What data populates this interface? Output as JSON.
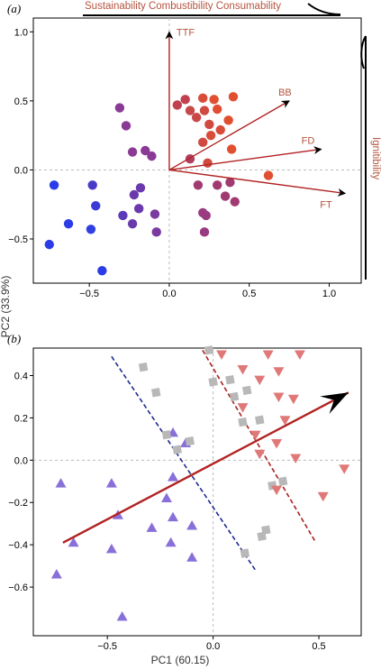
{
  "panel_labels": {
    "a": "(a)",
    "b": "(b)"
  },
  "side_labels": {
    "top": "Sustainability Combustibility Consumability",
    "right": "Ignitibility"
  },
  "colors": {
    "vector": "#b22222",
    "blue": "#2b3be6",
    "purple": "#7a3aa0",
    "red": "#e05030",
    "triangle": "#8870d8",
    "square": "#b8b8b8",
    "invtriangle": "#e07878",
    "navy_dash": "#1f2a8c",
    "red_dash": "#a82020"
  },
  "chart_data": [
    {
      "type": "scatter",
      "panel": "(a)",
      "xlim": [
        -0.85,
        1.2
      ],
      "ylim": [
        -0.82,
        1.1
      ],
      "xticks": [
        -0.5,
        0.0,
        0.5,
        1.0
      ],
      "yticks": [
        -0.5,
        0.0,
        0.5,
        1.0
      ],
      "xtick_labels": [
        "−0.5",
        "0.0",
        "0.5",
        "1.0"
      ],
      "ytick_labels": [
        "−0.5",
        "0.0",
        "0.5",
        "1.0"
      ],
      "grid": false,
      "vectors": [
        {
          "label": "TTF",
          "x": 0.0,
          "y": 1.0
        },
        {
          "label": "BB",
          "x": 0.75,
          "y": 0.5
        },
        {
          "label": "FD",
          "x": 0.95,
          "y": 0.15
        },
        {
          "label": "FT",
          "x": 1.1,
          "y": -0.17
        }
      ],
      "points": [
        {
          "x": -0.72,
          "y": -0.11,
          "c": "#2b3be6"
        },
        {
          "x": -0.63,
          "y": -0.39,
          "c": "#2b3be6"
        },
        {
          "x": -0.75,
          "y": -0.54,
          "c": "#2b3be6"
        },
        {
          "x": -0.46,
          "y": -0.26,
          "c": "#3b3ad8"
        },
        {
          "x": -0.49,
          "y": -0.43,
          "c": "#3040e0"
        },
        {
          "x": -0.42,
          "y": -0.73,
          "c": "#2b3be6"
        },
        {
          "x": -0.48,
          "y": -0.11,
          "c": "#4a3ac8"
        },
        {
          "x": -0.29,
          "y": -0.33,
          "c": "#5a3ab8"
        },
        {
          "x": -0.23,
          "y": -0.39,
          "c": "#6a3aac"
        },
        {
          "x": -0.18,
          "y": -0.13,
          "c": "#6a3aac"
        },
        {
          "x": -0.22,
          "y": -0.18,
          "c": "#6a3aac"
        },
        {
          "x": -0.19,
          "y": -0.28,
          "c": "#6a3aac"
        },
        {
          "x": -0.09,
          "y": -0.32,
          "c": "#7a3aa0"
        },
        {
          "x": -0.08,
          "y": -0.45,
          "c": "#7a3aa0"
        },
        {
          "x": -0.15,
          "y": 0.14,
          "c": "#8a3a94"
        },
        {
          "x": -0.11,
          "y": 0.1,
          "c": "#8a3a94"
        },
        {
          "x": -0.31,
          "y": 0.45,
          "c": "#8a3a94"
        },
        {
          "x": -0.27,
          "y": 0.32,
          "c": "#8a3a94"
        },
        {
          "x": -0.23,
          "y": 0.13,
          "c": "#8a3a94"
        },
        {
          "x": 0.22,
          "y": -0.45,
          "c": "#9a3a80"
        },
        {
          "x": 0.21,
          "y": -0.31,
          "c": "#9a3a80"
        },
        {
          "x": 0.23,
          "y": -0.33,
          "c": "#9a3a80"
        },
        {
          "x": 0.3,
          "y": -0.11,
          "c": "#a03a70"
        },
        {
          "x": 0.35,
          "y": -0.19,
          "c": "#a03a70"
        },
        {
          "x": 0.38,
          "y": -0.09,
          "c": "#a03a70"
        },
        {
          "x": 0.41,
          "y": -0.23,
          "c": "#a03a70"
        },
        {
          "x": 0.18,
          "y": -0.11,
          "c": "#a03a70"
        },
        {
          "x": 0.13,
          "y": 0.08,
          "c": "#b04060"
        },
        {
          "x": 0.05,
          "y": 0.47,
          "c": "#c04050"
        },
        {
          "x": 0.1,
          "y": 0.51,
          "c": "#c04050"
        },
        {
          "x": 0.17,
          "y": 0.38,
          "c": "#c84848"
        },
        {
          "x": 0.13,
          "y": 0.43,
          "c": "#c84848"
        },
        {
          "x": 0.22,
          "y": 0.43,
          "c": "#d04a40"
        },
        {
          "x": 0.25,
          "y": 0.33,
          "c": "#d04a40"
        },
        {
          "x": 0.21,
          "y": 0.2,
          "c": "#d04a40"
        },
        {
          "x": 0.24,
          "y": 0.05,
          "c": "#d04a40"
        },
        {
          "x": 0.21,
          "y": 0.52,
          "c": "#d84c38"
        },
        {
          "x": 0.26,
          "y": 0.25,
          "c": "#d84c38"
        },
        {
          "x": 0.32,
          "y": 0.29,
          "c": "#d84c38"
        },
        {
          "x": 0.3,
          "y": 0.44,
          "c": "#e04e34"
        },
        {
          "x": 0.28,
          "y": 0.51,
          "c": "#e05030"
        },
        {
          "x": 0.37,
          "y": 0.36,
          "c": "#e05030"
        },
        {
          "x": 0.39,
          "y": 0.15,
          "c": "#e05030"
        },
        {
          "x": 0.4,
          "y": 0.53,
          "c": "#e05030"
        },
        {
          "x": 0.62,
          "y": -0.04,
          "c": "#e05030"
        }
      ]
    },
    {
      "type": "scatter",
      "panel": "(b)",
      "xlabel": "PC1 (60.15)",
      "ylabel": "PC2 (33.9%)",
      "xlim": [
        -0.85,
        0.7
      ],
      "ylim": [
        -0.83,
        0.53
      ],
      "xticks": [
        -0.5,
        0.0,
        0.5
      ],
      "yticks": [
        -0.6,
        -0.4,
        -0.2,
        0.0,
        0.2,
        0.4
      ],
      "xtick_labels": [
        "−0.5",
        "0.0",
        "0.5"
      ],
      "ytick_labels": [
        "−0.6",
        "−0.4",
        "−0.2",
        "0.0",
        "0.2",
        "0.4"
      ],
      "grid": false,
      "vector": {
        "x0": -0.71,
        "y0": -0.39,
        "x1": 0.64,
        "y1": 0.32
      },
      "dashed_lines": [
        {
          "x0": -0.48,
          "y0": 0.49,
          "x1": 0.2,
          "y1": -0.52,
          "c": "#1f2a8c"
        },
        {
          "x0": -0.05,
          "y0": 0.52,
          "x1": 0.48,
          "y1": -0.38,
          "c": "#a82020"
        }
      ],
      "series": [
        {
          "marker": "triangle",
          "points": [
            {
              "x": -0.72,
              "y": -0.11
            },
            {
              "x": -0.48,
              "y": -0.11
            },
            {
              "x": -0.66,
              "y": -0.39
            },
            {
              "x": -0.74,
              "y": -0.54
            },
            {
              "x": -0.45,
              "y": -0.26
            },
            {
              "x": -0.48,
              "y": -0.42
            },
            {
              "x": -0.43,
              "y": -0.74
            },
            {
              "x": -0.19,
              "y": -0.08
            },
            {
              "x": -0.22,
              "y": -0.18
            },
            {
              "x": -0.19,
              "y": -0.27
            },
            {
              "x": -0.29,
              "y": -0.32
            },
            {
              "x": -0.2,
              "y": -0.39
            },
            {
              "x": -0.1,
              "y": -0.31
            },
            {
              "x": -0.1,
              "y": -0.46
            },
            {
              "x": -0.19,
              "y": 0.13
            },
            {
              "x": -0.13,
              "y": 0.08
            }
          ]
        },
        {
          "marker": "square",
          "points": [
            {
              "x": -0.33,
              "y": 0.44
            },
            {
              "x": -0.27,
              "y": 0.32
            },
            {
              "x": -0.22,
              "y": 0.12
            },
            {
              "x": -0.17,
              "y": 0.05
            },
            {
              "x": -0.11,
              "y": 0.09
            },
            {
              "x": -0.02,
              "y": 0.52
            },
            {
              "x": 0.0,
              "y": 0.37
            },
            {
              "x": 0.08,
              "y": 0.38
            },
            {
              "x": 0.1,
              "y": 0.3
            },
            {
              "x": 0.14,
              "y": 0.18
            },
            {
              "x": 0.16,
              "y": 0.33
            },
            {
              "x": 0.22,
              "y": 0.19
            },
            {
              "x": 0.28,
              "y": -0.12
            },
            {
              "x": 0.33,
              "y": -0.1
            },
            {
              "x": 0.25,
              "y": -0.33
            },
            {
              "x": 0.23,
              "y": -0.36
            },
            {
              "x": 0.15,
              "y": -0.44
            }
          ]
        },
        {
          "marker": "inverted-triangle",
          "points": [
            {
              "x": 0.04,
              "y": 0.5
            },
            {
              "x": 0.14,
              "y": 0.43
            },
            {
              "x": 0.22,
              "y": 0.38
            },
            {
              "x": 0.14,
              "y": 0.25
            },
            {
              "x": 0.26,
              "y": 0.5
            },
            {
              "x": 0.41,
              "y": 0.5
            },
            {
              "x": 0.31,
              "y": 0.42
            },
            {
              "x": 0.31,
              "y": 0.3
            },
            {
              "x": 0.38,
              "y": 0.29
            },
            {
              "x": 0.34,
              "y": 0.19
            },
            {
              "x": 0.2,
              "y": 0.12
            },
            {
              "x": 0.3,
              "y": 0.08
            },
            {
              "x": 0.22,
              "y": 0.03
            },
            {
              "x": 0.39,
              "y": 0.01
            },
            {
              "x": 0.3,
              "y": -0.14
            },
            {
              "x": 0.52,
              "y": -0.17
            },
            {
              "x": 0.62,
              "y": -0.04
            }
          ]
        }
      ]
    }
  ]
}
